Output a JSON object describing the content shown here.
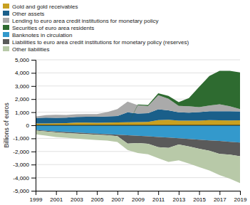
{
  "chart_data": {
    "type": "area",
    "stacked": true,
    "ylabel": "Billions of euros",
    "x": [
      1999,
      2000,
      2001,
      2002,
      2003,
      2004,
      2005,
      2006,
      2007,
      2008,
      2009,
      2010,
      2011,
      2012,
      2013,
      2014,
      2015,
      2016,
      2017,
      2018,
      2019
    ],
    "series": [
      {
        "name": "Gold and gold receivables",
        "color": "#c8a020",
        "values": [
          130,
          140,
          145,
          160,
          200,
          200,
          190,
          205,
          220,
          230,
          240,
          260,
          400,
          420,
          350,
          350,
          350,
          390,
          380,
          370,
          380
        ]
      },
      {
        "name": "Other assets",
        "color": "#1a5f8a",
        "values": [
          430,
          440,
          430,
          430,
          440,
          450,
          460,
          470,
          480,
          760,
          660,
          670,
          820,
          720,
          640,
          620,
          650,
          680,
          700,
          700,
          680
        ]
      },
      {
        "name": "Lending to euro area credit institutions for monetary policy",
        "color": "#aaaaaa",
        "values": [
          100,
          200,
          230,
          200,
          200,
          200,
          200,
          330,
          540,
          820,
          640,
          540,
          1080,
          880,
          490,
          490,
          390,
          440,
          530,
          390,
          170
        ]
      },
      {
        "name": "Securities of euro area residents",
        "color": "#2e6b30",
        "values": [
          0,
          0,
          0,
          0,
          0,
          0,
          0,
          0,
          0,
          0,
          50,
          80,
          150,
          220,
          280,
          620,
          1550,
          2250,
          2550,
          2700,
          2800
        ]
      },
      {
        "name": "Banknotes in circulation",
        "color": "#3399cc",
        "values": [
          -350,
          -415,
          -470,
          -515,
          -555,
          -595,
          -635,
          -675,
          -715,
          -755,
          -795,
          -840,
          -890,
          -940,
          -990,
          -1040,
          -1100,
          -1150,
          -1200,
          -1260,
          -1320
        ]
      },
      {
        "name": "Liabilities to euro area credit institutions for monetary policy (reserves)",
        "color": "#5a5a5a",
        "values": [
          -60,
          -60,
          -80,
          -80,
          -80,
          -80,
          -80,
          -80,
          -120,
          -650,
          -560,
          -570,
          -780,
          -780,
          -480,
          -580,
          -690,
          -790,
          -990,
          -980,
          -1040
        ]
      },
      {
        "name": "Other liabilities",
        "color": "#b8c9a8",
        "values": [
          -280,
          -310,
          -340,
          -360,
          -380,
          -400,
          -410,
          -420,
          -440,
          -480,
          -760,
          -800,
          -840,
          -1080,
          -1200,
          -1300,
          -1400,
          -1510,
          -1620,
          -1830,
          -2050
        ]
      }
    ],
    "xlim": [
      1999,
      2019
    ],
    "ylim": [
      -5000,
      5000
    ],
    "xticks": [
      1999,
      2001,
      2003,
      2005,
      2007,
      2009,
      2011,
      2013,
      2015,
      2017,
      2019
    ],
    "yticks": [
      {
        "value": -5000,
        "label": "-5,000"
      },
      {
        "value": -4000,
        "label": "-4,000"
      },
      {
        "value": -3000,
        "label": "-3,000"
      },
      {
        "value": -2000,
        "label": "-2,000"
      },
      {
        "value": -1000,
        "label": "-1,000"
      },
      0,
      {
        "value": 1000,
        "label": "1,000"
      },
      {
        "value": 2000,
        "label": "2,000"
      },
      {
        "value": 3000,
        "label": "3,000"
      },
      {
        "value": 4000,
        "label": "4,000"
      },
      {
        "value": 5000,
        "label": "5,000"
      }
    ],
    "grid": true,
    "legend": "top"
  }
}
